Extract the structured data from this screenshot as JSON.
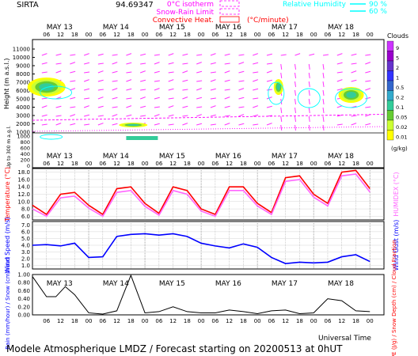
{
  "header": {
    "site": "SIRTA",
    "coord": "94.69347",
    "legend_left": [
      {
        "label": "0°C isotherm",
        "color": "#ff00ff"
      },
      {
        "label": "Snow-Rain Limit",
        "color": "#ff00ff"
      },
      {
        "label": "Convective Heat. (°C/minute)",
        "color": "#ff0000"
      }
    ],
    "legend_right": [
      {
        "label": "Relative Humidity",
        "value": "90 %",
        "color": "#00ffff"
      },
      {
        "label": "",
        "value": "60 %",
        "color": "#00ffff"
      }
    ]
  },
  "footer": {
    "title": "Modele Atmospherique LMDZ / Forecast starting on 20200513 at 0hUT",
    "xlabel": "Universal Time"
  },
  "axis": {
    "days": [
      "MAY 13",
      "MAY 14",
      "MAY 15",
      "MAY 16",
      "MAY 17",
      "MAY 18"
    ],
    "hours": [
      "06",
      "12",
      "18",
      "00"
    ]
  },
  "colors": {
    "temp": "#ff0000",
    "humidex": "#ff66ff",
    "wind": "#0000ff",
    "rain": "#0000ff",
    "cloud_scale": [
      "#ffff00",
      "#ccff33",
      "#66cc33",
      "#33cc99",
      "#33aacc",
      "#3366cc",
      "#3333ff",
      "#6633cc",
      "#9900cc",
      "#cc33ff"
    ]
  },
  "chart_data": [
    {
      "type": "heatmap",
      "title": "Clouds",
      "ylabel": "Height (m a.s.l.)",
      "ylabel_low": "Up to 300 m a.g.l.",
      "yticks_upper": [
        "11000",
        "10000",
        "9000",
        "8000",
        "7000",
        "6000",
        "5000",
        "4000",
        "3000",
        "2000",
        "1000"
      ],
      "yticks_lower": [
        "1000",
        "800",
        "600",
        "400",
        "200",
        "0"
      ],
      "colorbar_label": "(g/kg)",
      "colorbar_ticks": [
        "9",
        "5",
        "2",
        "1",
        "0.5",
        "0.2",
        "0.1",
        "0.05",
        "0.02",
        "0.01"
      ]
    },
    {
      "type": "line",
      "ylabel": "Temperature (°C)",
      "ylabel_right": "HUMIDEX (°C)",
      "yticks": [
        "18.0",
        "16.0",
        "14.0",
        "12.0",
        "10.0",
        "8.0",
        "6.0"
      ],
      "ylim": [
        5,
        19
      ],
      "series": [
        {
          "name": "Temperature",
          "color": "#ff0000",
          "hours": [
            0,
            6,
            12,
            18,
            24,
            30,
            36,
            42,
            48,
            54,
            60,
            66,
            72,
            78,
            84,
            90,
            96,
            102,
            108,
            114,
            120,
            126,
            132,
            138,
            144
          ],
          "values": [
            9.0,
            6.5,
            12.0,
            12.5,
            9.0,
            6.5,
            13.5,
            14.0,
            9.5,
            6.8,
            14.0,
            13.0,
            8.0,
            6.5,
            14.0,
            14.0,
            9.5,
            7.0,
            16.5,
            17.0,
            12.0,
            9.5,
            18.0,
            18.5,
            13.5
          ]
        },
        {
          "name": "Humidex",
          "color": "#ff66ff",
          "hours": [
            0,
            6,
            12,
            18,
            24,
            30,
            36,
            42,
            48,
            54,
            60,
            66,
            72,
            78,
            84,
            90,
            96,
            102,
            108,
            114,
            120,
            126,
            132,
            138,
            144
          ],
          "values": [
            8.0,
            6.0,
            11.0,
            11.5,
            8.2,
            6.0,
            12.5,
            13.0,
            8.7,
            6.3,
            13.0,
            12.0,
            7.4,
            6.0,
            13.0,
            13.0,
            8.8,
            6.5,
            15.5,
            16.0,
            11.2,
            8.8,
            17.0,
            17.5,
            12.6
          ]
        }
      ]
    },
    {
      "type": "line",
      "ylabel": "Wind Speed (m/s)",
      "ylabel_right": "Wind Gust (m/s)",
      "yticks": [
        "7.0",
        "6.0",
        "5.0",
        "4.0",
        "3.0",
        "2.0",
        "1.0"
      ],
      "ylim": [
        0.5,
        7.5
      ],
      "series": [
        {
          "name": "Wind Speed",
          "color": "#0000ff",
          "hours": [
            0,
            6,
            12,
            18,
            24,
            30,
            36,
            42,
            48,
            54,
            60,
            66,
            72,
            78,
            84,
            90,
            96,
            102,
            108,
            114,
            120,
            126,
            132,
            138,
            144
          ],
          "values": [
            4.0,
            4.1,
            3.9,
            4.3,
            2.2,
            2.3,
            5.3,
            5.6,
            5.7,
            5.5,
            5.7,
            5.3,
            4.3,
            3.9,
            3.6,
            4.2,
            3.7,
            2.2,
            1.3,
            1.5,
            1.4,
            1.5,
            2.3,
            2.6,
            1.6
          ]
        }
      ]
    },
    {
      "type": "area",
      "ylabel_left": "Rain (mm/hour) / Snow (cm/hour)",
      "ylabel_right": "CAPE (J/g) / Snow Depth (cm) / Cloud Fraction",
      "yticks": [
        "1.00",
        "0.80",
        "0.60",
        "0.40",
        "0.20",
        "0.00"
      ],
      "ylim": [
        0,
        1
      ],
      "series": [
        {
          "name": "Cloud Fraction",
          "color": "#000000",
          "hours": [
            0,
            6,
            10,
            14,
            18,
            24,
            30,
            36,
            42,
            48,
            54,
            60,
            66,
            72,
            78,
            84,
            90,
            96,
            102,
            108,
            114,
            120,
            126,
            132,
            138,
            144
          ],
          "values": [
            0.95,
            0.45,
            0.45,
            0.7,
            0.5,
            0.05,
            0.02,
            0.1,
            0.98,
            0.05,
            0.08,
            0.2,
            0.08,
            0.05,
            0.05,
            0.12,
            0.08,
            0.03,
            0.1,
            0.12,
            0.03,
            0.05,
            0.4,
            0.35,
            0.1,
            0.08
          ]
        }
      ]
    }
  ]
}
